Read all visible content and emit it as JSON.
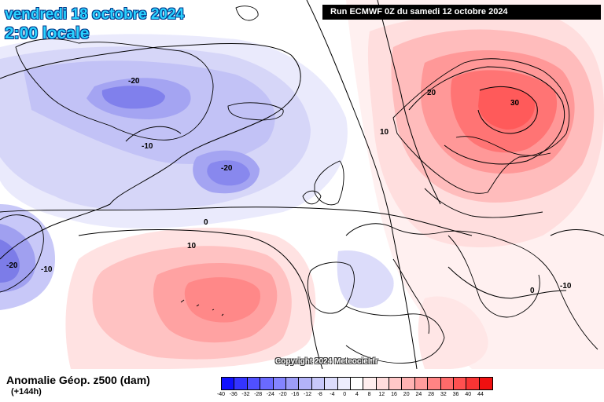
{
  "header": {
    "date": "vendredi 18 octobre 2024",
    "time": "2:00 locale",
    "run": "Run ECMWF 0Z du samedi 12 octobre 2024"
  },
  "copyright": "Copyright 2024 Meteociel.fr",
  "footer": {
    "product": "Anomalie Géop. z500 (dam)",
    "lead": "(+144h)"
  },
  "contour_labels": [
    "-20",
    "-10",
    "-20",
    "-20",
    "-10",
    "0",
    "10",
    "10",
    "20",
    "30",
    "0",
    "-10"
  ],
  "legend": {
    "ticks": [
      "-40",
      "-36",
      "-32",
      "-28",
      "-24",
      "-20",
      "-16",
      "-12",
      "-8",
      "-4",
      "0",
      "4",
      "8",
      "12",
      "16",
      "20",
      "24",
      "28",
      "32",
      "36",
      "40",
      "44"
    ],
    "colors": [
      "#1010ff",
      "#3434ff",
      "#5050ff",
      "#6a6aff",
      "#8484ff",
      "#9c9cf8",
      "#b3b3f8",
      "#c8c8fa",
      "#dcdcfc",
      "#eeeefe",
      "#ffffff",
      "#ffeeee",
      "#ffdcdc",
      "#ffc8c8",
      "#ffb3b3",
      "#ff9c9c",
      "#ff8484",
      "#ff6a6a",
      "#ff5050",
      "#f83434",
      "#f01010"
    ]
  },
  "colors": {
    "date_text": "#2ad2ff",
    "run_bg": "#000000"
  }
}
